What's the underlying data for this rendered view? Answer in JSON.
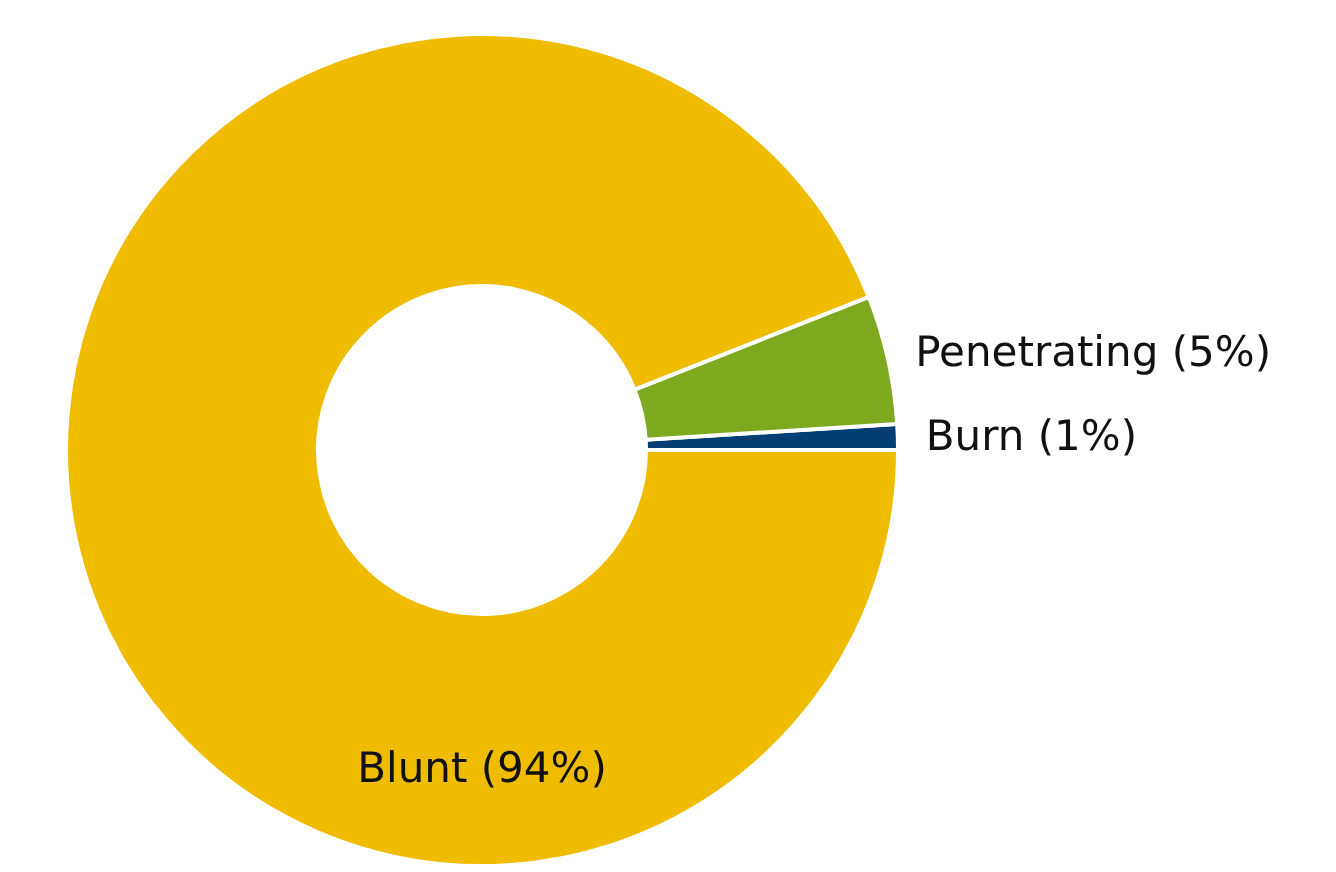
{
  "chart_data": {
    "type": "donut",
    "categories": [
      "Burn",
      "Penetrating",
      "Blunt"
    ],
    "values": [
      1,
      5,
      94
    ],
    "value_labels": [
      "(1%)",
      "(5%)",
      "(94%)"
    ],
    "colors": [
      "#043e74",
      "#7ea91f",
      "#f0bc00"
    ],
    "legend": false
  }
}
